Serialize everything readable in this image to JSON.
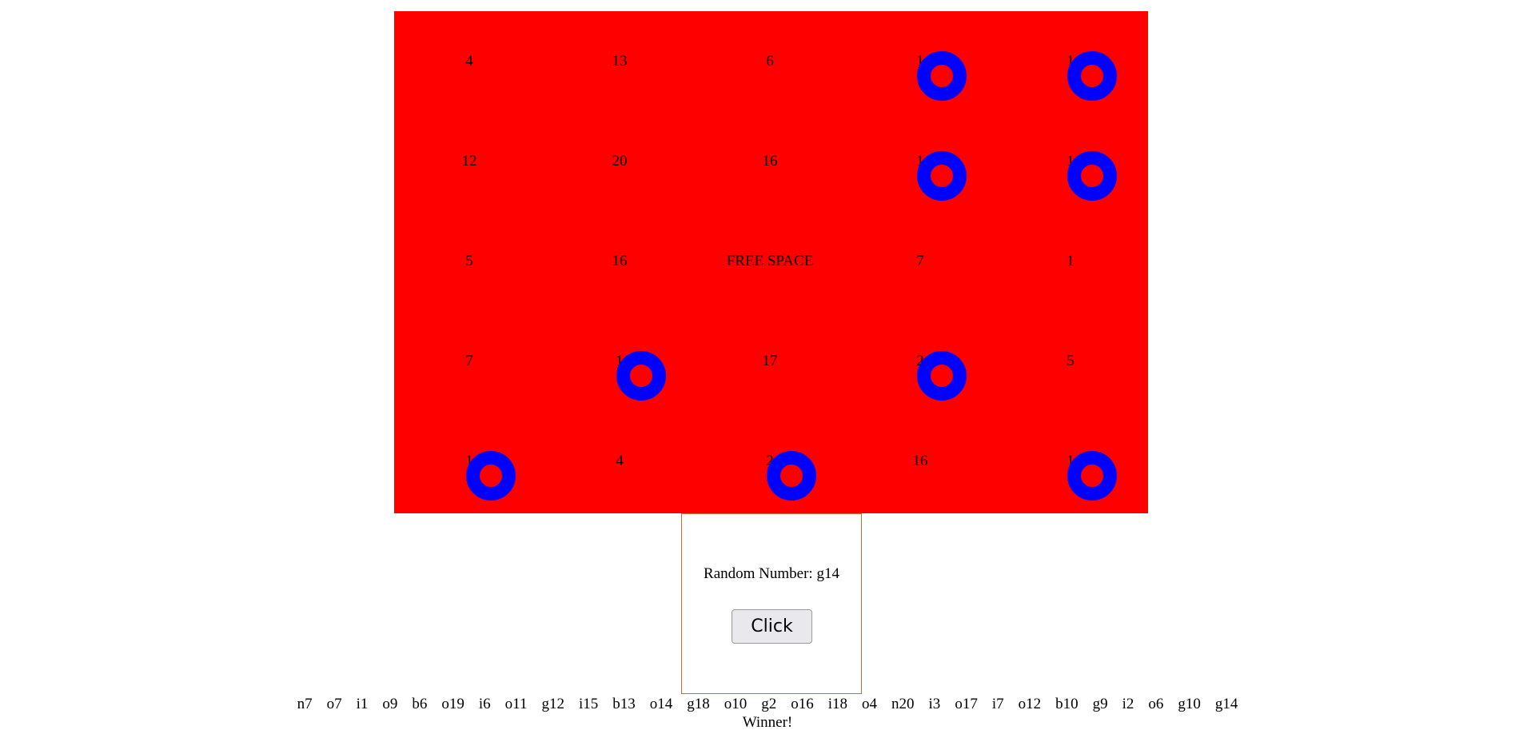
{
  "board": {
    "background_color": "#ff0000",
    "marker_color": "#0000ff",
    "cells": [
      {
        "row": 0,
        "col": 0,
        "value": "4",
        "marked": false
      },
      {
        "row": 0,
        "col": 1,
        "value": "13",
        "marked": false
      },
      {
        "row": 0,
        "col": 2,
        "value": "6",
        "marked": false
      },
      {
        "row": 0,
        "col": 3,
        "value": "1",
        "marked": true
      },
      {
        "row": 0,
        "col": 4,
        "value": "1",
        "marked": true
      },
      {
        "row": 1,
        "col": 0,
        "value": "12",
        "marked": false
      },
      {
        "row": 1,
        "col": 1,
        "value": "20",
        "marked": false
      },
      {
        "row": 1,
        "col": 2,
        "value": "16",
        "marked": false
      },
      {
        "row": 1,
        "col": 3,
        "value": "1",
        "marked": true
      },
      {
        "row": 1,
        "col": 4,
        "value": "1",
        "marked": true
      },
      {
        "row": 2,
        "col": 0,
        "value": "5",
        "marked": false
      },
      {
        "row": 2,
        "col": 1,
        "value": "16",
        "marked": false
      },
      {
        "row": 2,
        "col": 2,
        "value": "FREE SPACE",
        "marked": false
      },
      {
        "row": 2,
        "col": 3,
        "value": "7",
        "marked": false
      },
      {
        "row": 2,
        "col": 4,
        "value": "1",
        "marked": false
      },
      {
        "row": 3,
        "col": 0,
        "value": "7",
        "marked": false
      },
      {
        "row": 3,
        "col": 1,
        "value": "1",
        "marked": true
      },
      {
        "row": 3,
        "col": 2,
        "value": "17",
        "marked": false
      },
      {
        "row": 3,
        "col": 3,
        "value": "2",
        "marked": true
      },
      {
        "row": 3,
        "col": 4,
        "value": "5",
        "marked": false
      },
      {
        "row": 4,
        "col": 0,
        "value": "1",
        "marked": true
      },
      {
        "row": 4,
        "col": 1,
        "value": "4",
        "marked": false
      },
      {
        "row": 4,
        "col": 2,
        "value": "2",
        "marked": true
      },
      {
        "row": 4,
        "col": 3,
        "value": "16",
        "marked": false
      },
      {
        "row": 4,
        "col": 4,
        "value": "1",
        "marked": true
      }
    ]
  },
  "controls": {
    "random_label": "Random Number: g14",
    "button_label": "Click",
    "border_color": "#c86a3a"
  },
  "history": [
    "n7",
    "o7",
    "i1",
    "o9",
    "b6",
    "o19",
    "i6",
    "o11",
    "g12",
    "i15",
    "b13",
    "o14",
    "g18",
    "o10",
    "g2",
    "o16",
    "i18",
    "o4",
    "n20",
    "i3",
    "o17",
    "i7",
    "o12",
    "b10",
    "g9",
    "i2",
    "o6",
    "g10",
    "g14"
  ],
  "status": {
    "winner_text": "Winner!"
  }
}
